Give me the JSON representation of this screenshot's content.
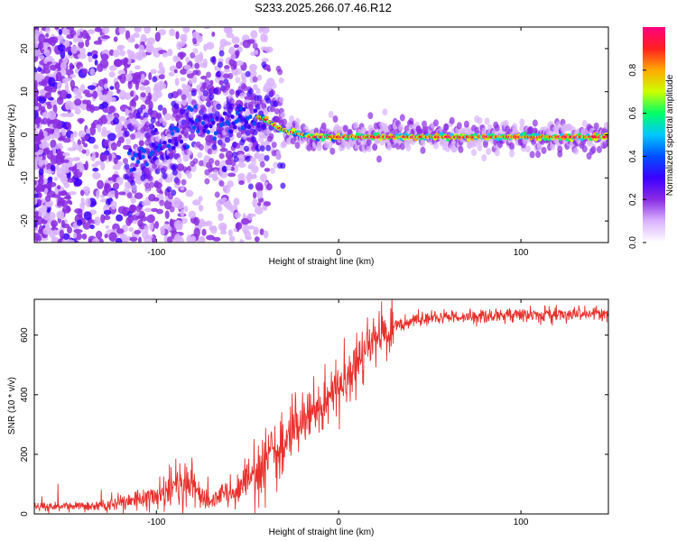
{
  "title": "S233.2025.266.07.46.R12",
  "colors": {
    "snr_line": "#e8302c",
    "palette": [
      "#ffffff",
      "#d9b3ff",
      "#8a2be2",
      "#3b00ff",
      "#0050ff",
      "#00c8ff",
      "#00ff66",
      "#ccff00",
      "#ffaa00",
      "#ff2020",
      "#ff0080"
    ]
  },
  "chart_data": [
    {
      "type": "heatmap",
      "xlabel": "Height of straight line (km)",
      "ylabel": "Frequency (Hz)",
      "xlim": [
        -167,
        148
      ],
      "ylim": [
        -25,
        25
      ],
      "x_ticks": [
        -100,
        0,
        100
      ],
      "y_ticks": [
        -20,
        -10,
        0,
        10,
        20
      ],
      "ridge": {
        "x": [
          -110,
          -100,
          -90,
          -80,
          -70,
          -60,
          -50,
          -45,
          -40,
          -35,
          -30,
          -25,
          -20,
          -15,
          -10,
          -5,
          0,
          5,
          10,
          20,
          40,
          60,
          80,
          100,
          120,
          140,
          148
        ],
        "y": [
          -6,
          -4,
          -1,
          2,
          3.5,
          3.5,
          3.8,
          4,
          3.5,
          2,
          1,
          0.5,
          0,
          -0.5,
          -0.5,
          -0.5,
          -0.5,
          -0.5,
          -0.5,
          -0.5,
          -0.5,
          -0.5,
          -0.5,
          -0.5,
          -0.5,
          -0.5,
          -0.5
        ]
      },
      "colorbar": {
        "label": "Normalized spectral amplitude",
        "range": [
          0,
          1
        ],
        "ticks": [
          "0.0",
          "0.2",
          "0.4",
          "0.6",
          "0.8"
        ]
      }
    },
    {
      "type": "line",
      "xlabel": "Height of straight line (km)",
      "ylabel": "SNR (10 * v/v)",
      "xlim": [
        -167,
        148
      ],
      "ylim": [
        0,
        720
      ],
      "x_ticks": [
        -100,
        0,
        100
      ],
      "y_ticks": [
        0,
        200,
        400,
        600
      ],
      "series": [
        {
          "x": [
            -167,
            -150,
            -130,
            -120,
            -110,
            -100,
            -95,
            -90,
            -85,
            -80,
            -75,
            -70,
            -65,
            -60,
            -55,
            -50,
            -45,
            -40,
            -35,
            -30,
            -25,
            -20,
            -15,
            -10,
            -5,
            0,
            5,
            10,
            15,
            20,
            25,
            30,
            40,
            60,
            80,
            100,
            120,
            140,
            148
          ],
          "values": [
            25,
            22,
            28,
            35,
            45,
            60,
            75,
            95,
            110,
            90,
            55,
            45,
            55,
            70,
            85,
            110,
            140,
            180,
            220,
            250,
            280,
            310,
            340,
            370,
            400,
            420,
            450,
            500,
            540,
            580,
            610,
            630,
            650,
            660,
            665,
            668,
            670,
            670,
            670
          ]
        }
      ]
    }
  ]
}
